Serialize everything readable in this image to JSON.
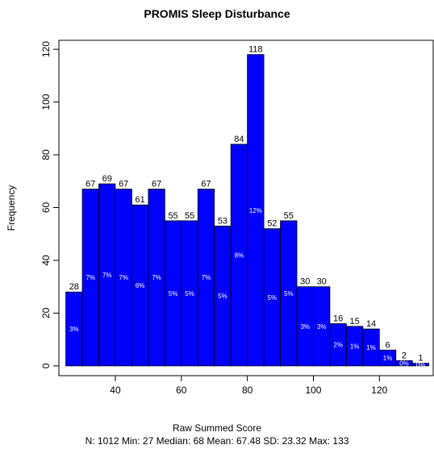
{
  "chart_data": {
    "type": "histogram",
    "title": "PROMIS Sleep Disturbance",
    "x_label": "Raw Summed Score",
    "y_label": "Frequency",
    "footnote": "N: 1012 Min: 27  Median: 68  Mean: 67.48  SD: 23.32  Max: 133",
    "bins": [
      25,
      30,
      35,
      40,
      45,
      50,
      55,
      60,
      65,
      70,
      75,
      80,
      85,
      90,
      95,
      100,
      105,
      110,
      115,
      120,
      125,
      130,
      135
    ],
    "values": [
      28,
      67,
      69,
      67,
      61,
      67,
      55,
      55,
      67,
      53,
      84,
      118,
      52,
      55,
      30,
      30,
      16,
      15,
      14,
      6,
      2,
      1
    ],
    "bar_percent_labels": [
      "3%",
      "7%",
      "7%",
      "7%",
      "6%",
      "7%",
      "5%",
      "5%",
      "7%",
      "5%",
      "8%",
      "12%",
      "5%",
      "5%",
      "3%",
      "3%",
      "2%",
      "1%",
      "1%",
      "1%",
      "0%",
      "0%"
    ],
    "color": "#0000ff",
    "xlim": [
      22.9,
      136.3
    ],
    "xticks": [
      40,
      60,
      80,
      100,
      120
    ],
    "ylim": [
      -3.7,
      123.4
    ],
    "yticks": [
      0,
      20,
      40,
      60,
      80,
      100,
      120
    ]
  }
}
